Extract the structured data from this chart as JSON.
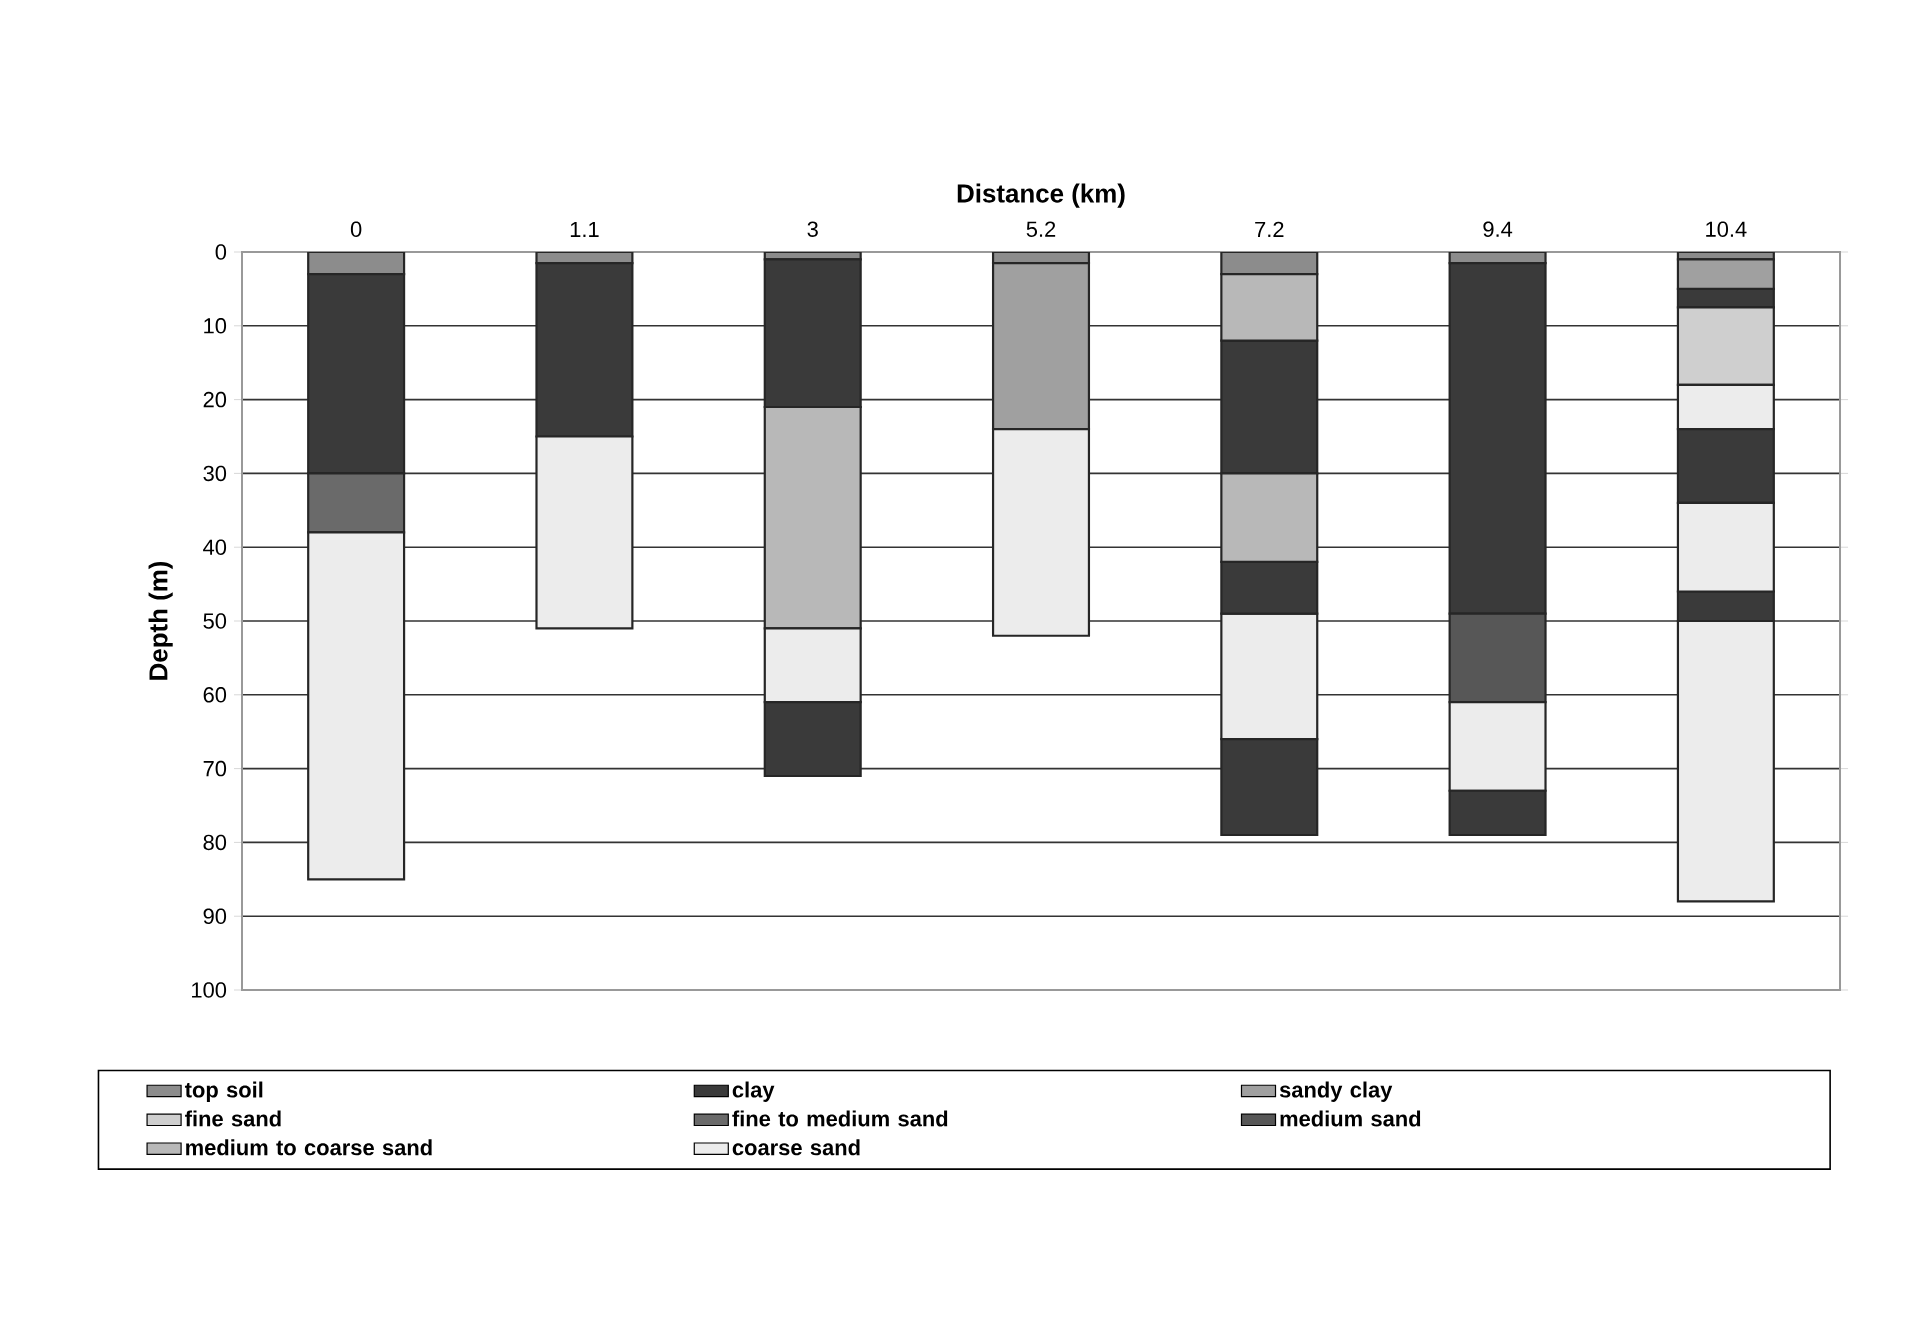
{
  "chart_data": {
    "type": "bar",
    "xlabel": "Distance (km)",
    "ylabel": "Depth (m)",
    "categories": [
      "0",
      "1.1",
      "3",
      "5.2",
      "7.2",
      "9.4",
      "10.4"
    ],
    "ylim": [
      100,
      0
    ],
    "yticks": [
      0,
      10,
      20,
      30,
      40,
      50,
      60,
      70,
      80,
      90,
      100
    ],
    "grid": "y",
    "legend": "bottom",
    "series": [
      {
        "name": "top soil",
        "color": "#8c8c8c",
        "base": [
          0,
          0,
          0,
          0,
          0,
          0,
          0
        ],
        "values": [
          3,
          1.5,
          1,
          1.5,
          3,
          1.5,
          1
        ]
      },
      {
        "name": "clay",
        "color": "#3a3a3a",
        "base": [
          3,
          1.5,
          1,
          null,
          12,
          1.5,
          5
        ],
        "values": [
          27,
          23.5,
          20,
          null,
          18,
          47.5,
          2.5
        ]
      },
      {
        "name": "sandy clay",
        "color": "#a0a0a0",
        "base": [
          null,
          null,
          null,
          1.5,
          null,
          null,
          1
        ],
        "values": [
          null,
          null,
          null,
          22.5,
          null,
          null,
          4
        ]
      },
      {
        "name": "fine sand",
        "color": "#cfcfcf",
        "base": [
          null,
          null,
          null,
          null,
          null,
          null,
          7.5
        ],
        "values": [
          null,
          null,
          null,
          null,
          null,
          null,
          10.5
        ]
      },
      {
        "name": "fine to medium sand",
        "color": "#6a6a6a",
        "base": [
          30,
          null,
          null,
          null,
          null,
          null,
          null
        ],
        "values": [
          8,
          null,
          null,
          null,
          null,
          null,
          null
        ]
      },
      {
        "name": "medium sand",
        "color": "#575757",
        "base": [
          null,
          null,
          null,
          null,
          null,
          49,
          null
        ],
        "values": [
          null,
          null,
          null,
          null,
          null,
          12,
          null
        ]
      },
      {
        "name": "medium to coarse sand",
        "color": "#b8b8b8",
        "base": [
          null,
          null,
          21,
          null,
          3,
          null,
          null
        ],
        "values": [
          null,
          null,
          30,
          null,
          9,
          null,
          null
        ]
      },
      {
        "name": "coarse sand",
        "color": "#ececec",
        "base": [
          38,
          25,
          51,
          24,
          49,
          61,
          18
        ],
        "values": [
          47,
          26,
          10,
          28,
          17,
          12,
          6
        ]
      },
      {
        "color": "#3a3a3a",
        "base": [
          null,
          null,
          61,
          null,
          42,
          73,
          24
        ],
        "values": [
          null,
          null,
          10,
          null,
          7,
          6,
          10
        ]
      },
      {
        "color": "#3a3a3a",
        "base": [
          null,
          null,
          null,
          null,
          66,
          null,
          46
        ],
        "values": [
          null,
          null,
          null,
          null,
          13,
          null,
          4
        ]
      },
      {
        "color": "#b8b8b8",
        "base": [
          null,
          null,
          null,
          null,
          30,
          null,
          null
        ],
        "values": [
          null,
          null,
          null,
          null,
          12,
          null,
          null
        ]
      },
      {
        "color": "#ececec",
        "base": [
          null,
          null,
          null,
          null,
          null,
          null,
          34
        ],
        "values": [
          null,
          null,
          null,
          null,
          null,
          null,
          12
        ]
      },
      {
        "color": "#ececec",
        "base": [
          null,
          null,
          null,
          null,
          null,
          null,
          50
        ],
        "values": [
          null,
          null,
          null,
          null,
          null,
          null,
          38
        ]
      }
    ]
  }
}
